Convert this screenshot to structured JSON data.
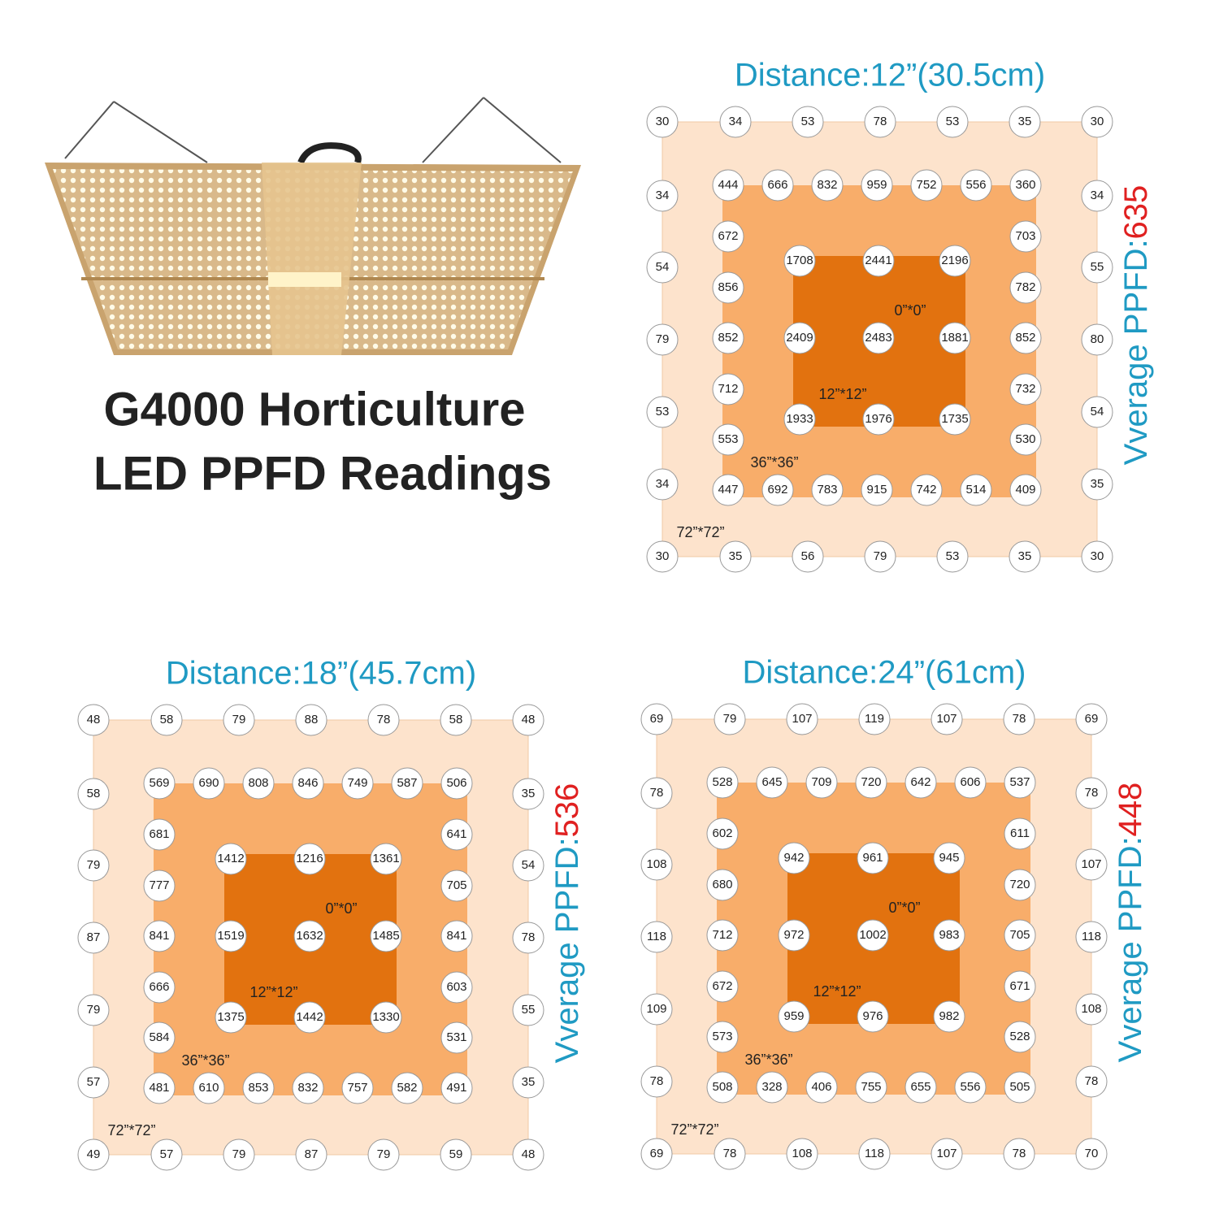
{
  "title": {
    "line1": "G4000 Horticulture",
    "line2": "LED PPFD Readings"
  },
  "panels": [
    {
      "distance": "Distance:12”(30.5cm)",
      "average_label": "Vverage PPFD:",
      "average_value": 635,
      "zones": {
        "outer": "72”*72”",
        "middle": "36”*36”",
        "inner": "12”*12”",
        "center": "0”*0”"
      },
      "readings": {
        "outer_top": [
          30,
          34,
          53,
          78,
          53,
          35,
          30
        ],
        "outer_left": [
          34,
          54,
          79,
          53,
          34
        ],
        "outer_right": [
          34,
          55,
          80,
          54,
          35
        ],
        "outer_bottom": [
          30,
          35,
          56,
          79,
          53,
          35,
          30
        ],
        "middle_top": [
          444,
          666,
          832,
          959,
          752,
          556,
          360
        ],
        "middle_left": [
          672,
          856,
          852,
          712,
          553
        ],
        "middle_right": [
          703,
          782,
          852,
          732,
          530
        ],
        "middle_bottom": [
          447,
          692,
          783,
          915,
          742,
          514,
          409
        ],
        "inner": [
          [
            1708,
            2441,
            2196
          ],
          [
            2409,
            2483,
            1881
          ],
          [
            1933,
            1976,
            1735
          ]
        ]
      }
    },
    {
      "distance": "Distance:18”(45.7cm)",
      "average_label": "Vverage PPFD:",
      "average_value": 536,
      "zones": {
        "outer": "72”*72”",
        "middle": "36”*36”",
        "inner": "12”*12”",
        "center": "0”*0”"
      },
      "readings": {
        "outer_top": [
          48,
          58,
          79,
          88,
          78,
          58,
          48
        ],
        "outer_left": [
          58,
          79,
          87,
          79,
          57
        ],
        "outer_right": [
          35,
          54,
          78,
          55,
          35
        ],
        "outer_bottom": [
          49,
          57,
          79,
          87,
          79,
          59,
          48
        ],
        "middle_top": [
          569,
          690,
          808,
          846,
          749,
          587,
          506
        ],
        "middle_left": [
          681,
          777,
          841,
          666,
          584
        ],
        "middle_right": [
          641,
          705,
          841,
          603,
          531
        ],
        "middle_bottom": [
          481,
          610,
          853,
          832,
          757,
          582,
          491
        ],
        "inner": [
          [
            1412,
            1216,
            1361
          ],
          [
            1519,
            1632,
            1485
          ],
          [
            1375,
            1442,
            1330
          ]
        ]
      }
    },
    {
      "distance": "Distance:24”(61cm)",
      "average_label": "Vverage PPFD:",
      "average_value": 448,
      "zones": {
        "outer": "72”*72”",
        "middle": "36”*36”",
        "inner": "12”*12”",
        "center": "0”*0”"
      },
      "readings": {
        "outer_top": [
          69,
          79,
          107,
          119,
          107,
          78,
          69
        ],
        "outer_left": [
          78,
          108,
          118,
          109,
          78
        ],
        "outer_right": [
          78,
          107,
          118,
          108,
          78
        ],
        "outer_bottom": [
          69,
          78,
          108,
          118,
          107,
          78,
          70
        ],
        "middle_top": [
          528,
          645,
          709,
          720,
          642,
          606,
          537
        ],
        "middle_left": [
          602,
          680,
          712,
          672,
          573
        ],
        "middle_right": [
          611,
          720,
          705,
          671,
          528
        ],
        "middle_bottom": [
          508,
          328,
          406,
          755,
          655,
          556,
          505
        ],
        "inner": [
          [
            942,
            961,
            945
          ],
          [
            972,
            1002,
            983
          ],
          [
            959,
            976,
            982
          ]
        ]
      }
    }
  ]
}
